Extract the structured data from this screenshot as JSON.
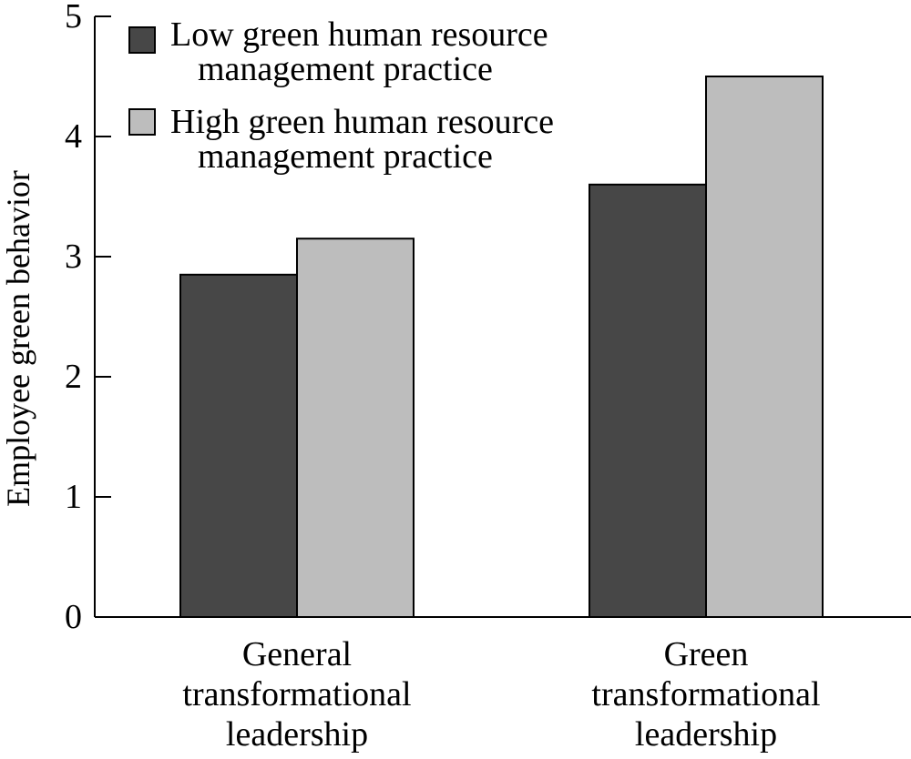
{
  "chart_data": {
    "type": "bar",
    "title": "",
    "xlabel": "",
    "ylabel": "Employee green behavior",
    "ylim": [
      0,
      5
    ],
    "yticks": [
      "0",
      "1",
      "2",
      "3",
      "4",
      "5"
    ],
    "grid": false,
    "legend_position": "top-left",
    "categories": [
      [
        "General",
        "transformational",
        "leadership"
      ],
      [
        "Green",
        "transformational",
        "leadership"
      ]
    ],
    "series": [
      {
        "name": [
          "Low green human resource",
          "management practice"
        ],
        "values": [
          2.85,
          3.6
        ],
        "color": "#474747"
      },
      {
        "name": [
          "High green human resource",
          "management practice"
        ],
        "values": [
          3.15,
          4.5
        ],
        "color": "#bdbdbd"
      }
    ]
  }
}
